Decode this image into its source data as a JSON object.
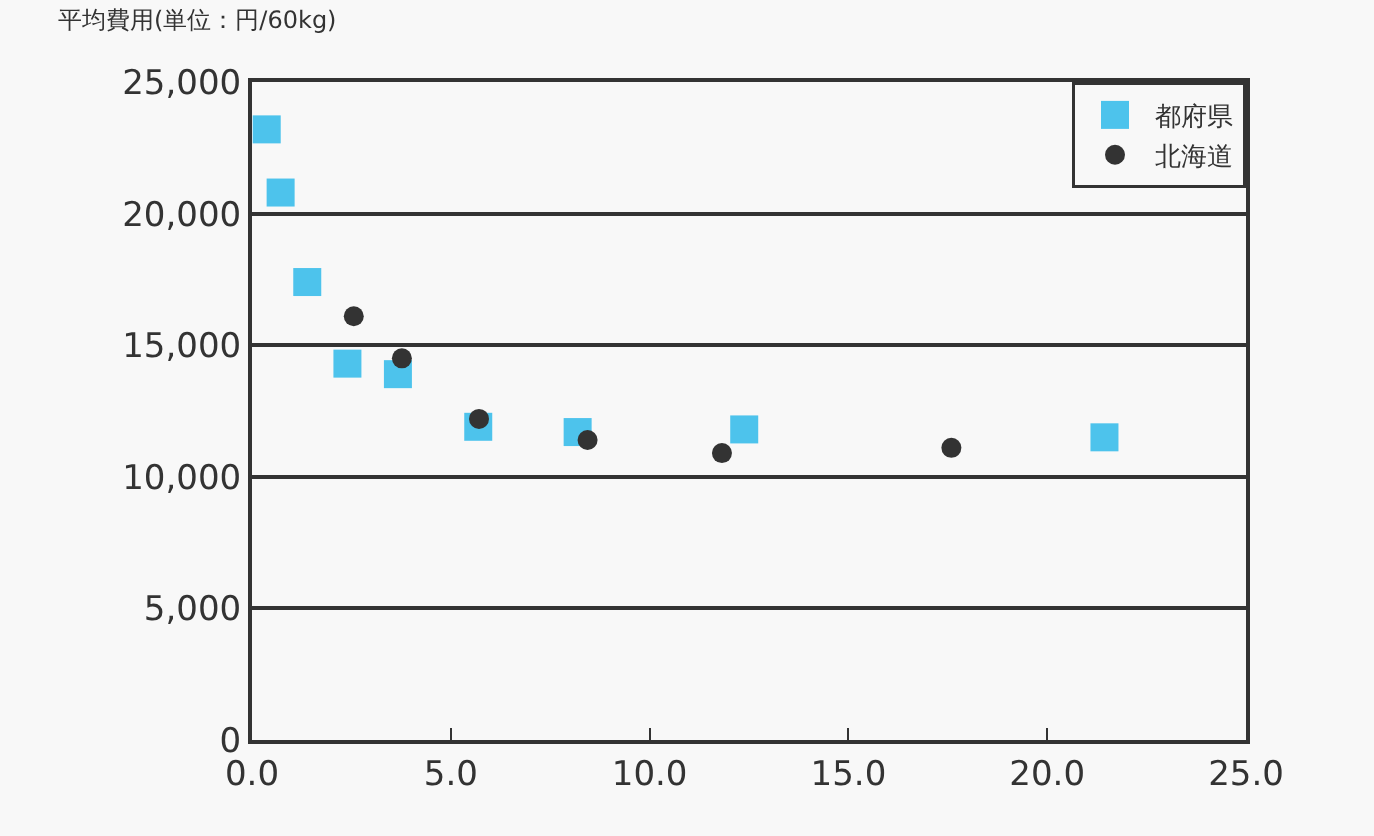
{
  "chart_data": {
    "type": "scatter",
    "ylabel": "平均費用(単位：円/60kg)",
    "series": [
      {
        "name": "都府県",
        "color": "#4dc3ec",
        "marker": "square",
        "x": [
          0.37,
          0.72,
          1.39,
          2.4,
          3.67,
          5.69,
          8.19,
          12.38,
          21.44
        ],
        "values": [
          23200,
          20800,
          17400,
          14300,
          13900,
          11900,
          11700,
          11800,
          11500
        ]
      },
      {
        "name": "北海道",
        "color": "#333333",
        "marker": "circle",
        "x": [
          2.56,
          3.77,
          5.71,
          8.44,
          11.82,
          17.59
        ],
        "values": [
          16100,
          14500,
          12200,
          11400,
          10900,
          11100
        ]
      }
    ],
    "xlim": [
      0,
      25
    ],
    "xticks": [
      {
        "value": 0,
        "label": "0.0"
      },
      {
        "value": 5,
        "label": "5.0"
      },
      {
        "value": 10,
        "label": "10.0"
      },
      {
        "value": 15,
        "label": "15.0"
      },
      {
        "value": 20,
        "label": "20.0"
      },
      {
        "value": 25,
        "label": "25.0"
      }
    ],
    "ylim": [
      0,
      25000
    ],
    "yticks": [
      {
        "value": 0,
        "label": "0"
      },
      {
        "value": 5000,
        "label": "5,000"
      },
      {
        "value": 10000,
        "label": "10,000"
      },
      {
        "value": 15000,
        "label": "15,000"
      },
      {
        "value": 20000,
        "label": "20,000"
      },
      {
        "value": 25000,
        "label": "25,000"
      }
    ],
    "grid": "y",
    "legend": "top right"
  }
}
